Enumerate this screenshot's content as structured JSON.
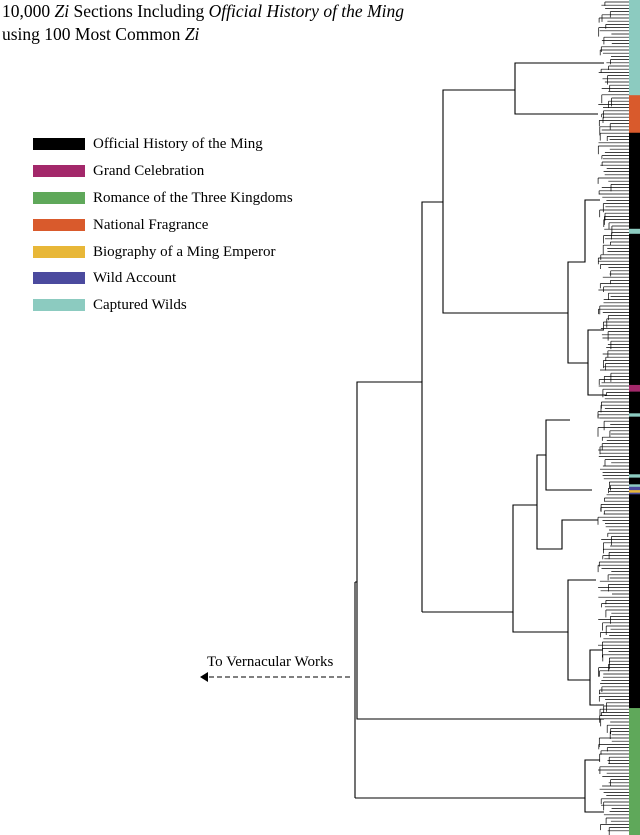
{
  "title": {
    "part1": "10,000 ",
    "part2": "Zi",
    "part3": " Sections Including ",
    "part4": "Official History of the Ming",
    "part5": " using 100 Most Common ",
    "part6": "Zi"
  },
  "legend": [
    {
      "label": "Official History of the Ming",
      "color": "#000000"
    },
    {
      "label": "Grand Celebration",
      "color": "#a3286a"
    },
    {
      "label": "Romance of the Three Kingdoms",
      "color": "#5fa85a"
    },
    {
      "label": "National Fragrance",
      "color": "#d95a2c"
    },
    {
      "label": "Biography of a Ming Emperor",
      "color": "#e8b738"
    },
    {
      "label": "Wild Account",
      "color": "#4b4a9e"
    },
    {
      "label": "Captured Wilds",
      "color": "#8ccbc0"
    }
  ],
  "annotation": {
    "vernacular": "To Vernacular Works"
  },
  "strip": [
    {
      "group": "Captured Wilds",
      "fraction": 0.114
    },
    {
      "group": "National Fragrance",
      "fraction": 0.045
    },
    {
      "group": "Official History of the Ming",
      "fraction": 0.115
    },
    {
      "group": "Captured Wilds",
      "fraction": 0.006
    },
    {
      "group": "Official History of the Ming",
      "fraction": 0.181
    },
    {
      "group": "Grand Celebration",
      "fraction": 0.008
    },
    {
      "group": "Official History of the Ming",
      "fraction": 0.026
    },
    {
      "group": "Captured Wilds",
      "fraction": 0.004
    },
    {
      "group": "Official History of the Ming",
      "fraction": 0.069
    },
    {
      "group": "Captured Wilds",
      "fraction": 0.004
    },
    {
      "group": "Official History of the Ming",
      "fraction": 0.008
    },
    {
      "group": "Captured Wilds",
      "fraction": 0.003
    },
    {
      "group": "Wild Account",
      "fraction": 0.004
    },
    {
      "group": "Biography of a Ming Emperor",
      "fraction": 0.003
    },
    {
      "group": "Wild Account",
      "fraction": 0.002
    },
    {
      "group": "Official History of the Ming",
      "fraction": 0.256
    },
    {
      "group": "Romance of the Three Kingdoms",
      "fraction": 0.152
    }
  ]
}
